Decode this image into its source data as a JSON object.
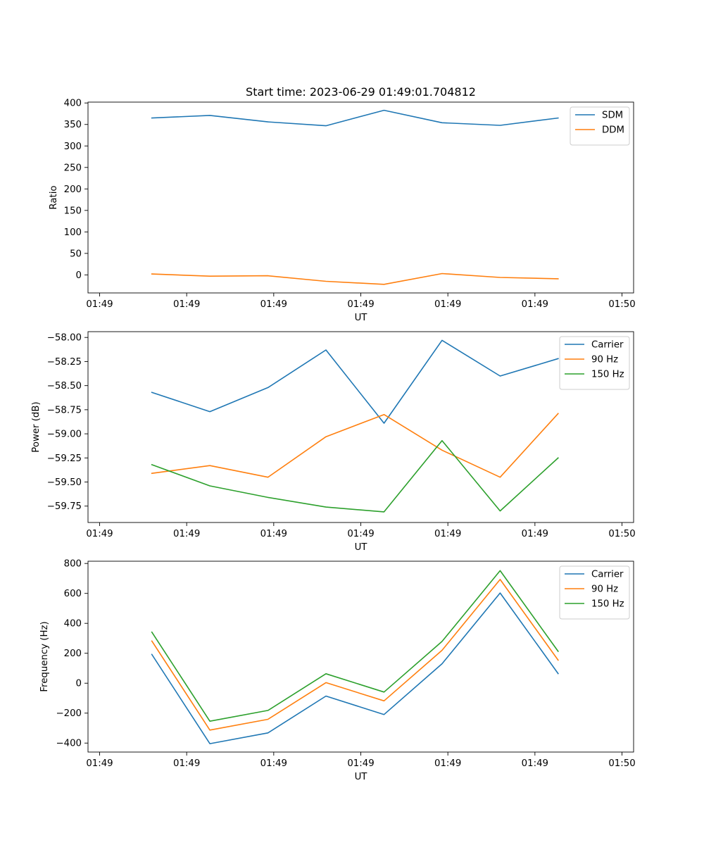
{
  "chart_data": [
    {
      "type": "line",
      "title": "Start time: 2023-06-29 01:49:01.704812",
      "xlabel": "UT",
      "ylabel": "Ratio",
      "x": [
        0.9,
        1.9,
        2.9,
        3.9,
        4.9,
        5.9,
        6.9,
        7.9
      ],
      "xlim": [
        -0.2,
        9.2
      ],
      "x_ticks": [
        0,
        1.5,
        3,
        4.5,
        6,
        7.5,
        9
      ],
      "x_tick_labels": [
        "01:49",
        "01:49",
        "01:49",
        "01:49",
        "01:49",
        "01:49",
        "01:50"
      ],
      "ylim": [
        -42,
        402
      ],
      "y_ticks": [
        0,
        50,
        100,
        150,
        200,
        250,
        300,
        350,
        400
      ],
      "y_tick_labels": [
        "0",
        "50",
        "100",
        "150",
        "200",
        "250",
        "300",
        "350",
        "400"
      ],
      "grid": false,
      "legend": "top-right",
      "series": [
        {
          "name": "SDM",
          "color": "#1f77b4",
          "values": [
            365,
            371,
            356,
            347,
            383,
            354,
            348,
            365
          ]
        },
        {
          "name": "DDM",
          "color": "#ff7f0e",
          "values": [
            2,
            -3,
            -2,
            -15,
            -22,
            3,
            -6,
            -9
          ]
        }
      ]
    },
    {
      "type": "line",
      "xlabel": "UT",
      "ylabel": "Power (dB)",
      "x": [
        0.9,
        1.9,
        2.9,
        3.9,
        4.9,
        5.9,
        6.9,
        7.9
      ],
      "xlim": [
        -0.2,
        9.2
      ],
      "x_ticks": [
        0,
        1.5,
        3,
        4.5,
        6,
        7.5,
        9
      ],
      "x_tick_labels": [
        "01:49",
        "01:49",
        "01:49",
        "01:49",
        "01:49",
        "01:49",
        "01:50"
      ],
      "ylim": [
        -59.92,
        -57.94
      ],
      "y_ticks": [
        -58.0,
        -58.25,
        -58.5,
        -58.75,
        -59.0,
        -59.25,
        -59.5,
        -59.75
      ],
      "y_tick_labels": [
        "−58.00",
        "−58.25",
        "−58.50",
        "−58.75",
        "−59.00",
        "−59.25",
        "−59.50",
        "−59.75"
      ],
      "grid": false,
      "legend": "top-right",
      "series": [
        {
          "name": "Carrier",
          "color": "#1f77b4",
          "values": [
            -58.57,
            -58.77,
            -58.52,
            -58.13,
            -58.89,
            -58.03,
            -58.4,
            -58.22
          ]
        },
        {
          "name": "90 Hz",
          "color": "#ff7f0e",
          "values": [
            -59.41,
            -59.33,
            -59.45,
            -59.03,
            -58.8,
            -59.17,
            -59.45,
            -58.79
          ]
        },
        {
          "name": "150 Hz",
          "color": "#2ca02c",
          "values": [
            -59.32,
            -59.54,
            -59.66,
            -59.76,
            -59.81,
            -59.07,
            -59.8,
            -59.25
          ]
        }
      ]
    },
    {
      "type": "line",
      "xlabel": "UT",
      "ylabel": "Frequency (Hz)",
      "x": [
        0.9,
        1.9,
        2.9,
        3.9,
        4.9,
        5.9,
        6.9,
        7.9
      ],
      "xlim": [
        -0.2,
        9.2
      ],
      "x_ticks": [
        0,
        1.5,
        3,
        4.5,
        6,
        7.5,
        9
      ],
      "x_tick_labels": [
        "01:49",
        "01:49",
        "01:49",
        "01:49",
        "01:49",
        "01:49",
        "01:50"
      ],
      "ylim": [
        -460,
        815
      ],
      "y_ticks": [
        -400,
        -200,
        0,
        200,
        400,
        600,
        800
      ],
      "y_tick_labels": [
        "−400",
        "−200",
        "0",
        "200",
        "400",
        "600",
        "800"
      ],
      "grid": false,
      "legend": "top-right",
      "series": [
        {
          "name": "Carrier",
          "color": "#1f77b4",
          "values": [
            192,
            -404,
            -332,
            -86,
            -209,
            130,
            603,
            64
          ]
        },
        {
          "name": "90 Hz",
          "color": "#ff7f0e",
          "values": [
            282,
            -313,
            -241,
            4,
            -118,
            220,
            693,
            154
          ]
        },
        {
          "name": "150 Hz",
          "color": "#2ca02c",
          "values": [
            341,
            -254,
            -182,
            63,
            -59,
            279,
            752,
            213
          ]
        }
      ]
    }
  ]
}
